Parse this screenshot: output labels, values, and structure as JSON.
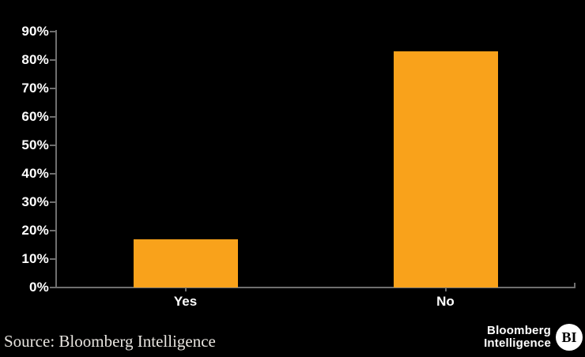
{
  "chart_data": {
    "type": "bar",
    "categories": [
      "Yes",
      "No"
    ],
    "values": [
      17,
      83
    ],
    "unit": "%",
    "title": "",
    "xlabel": "",
    "ylabel": "",
    "ylim": [
      0,
      90
    ],
    "yticks": [
      0,
      10,
      20,
      30,
      40,
      50,
      60,
      70,
      80,
      90
    ],
    "ytick_labels": [
      "0%",
      "10%",
      "20%",
      "30%",
      "40%",
      "50%",
      "60%",
      "70%",
      "80%",
      "90%"
    ],
    "grid": false,
    "legend": "none",
    "bar_color": "#F9A21B"
  },
  "footer": {
    "source_label": "Source: Bloomberg Intelligence",
    "logo_line1": "Bloomberg",
    "logo_line2": "Intelligence",
    "logo_badge": "BI"
  },
  "colors": {
    "background": "#000000",
    "bar": "#F9A21B",
    "axis": "#6E6E6E",
    "tick_label": "#FFFFFF",
    "category_label": "#FFFFFF",
    "source_text": "#E8E5E0",
    "logo_text": "#FFFFFF",
    "badge_bg": "#FFFFFF",
    "badge_text": "#000000"
  }
}
